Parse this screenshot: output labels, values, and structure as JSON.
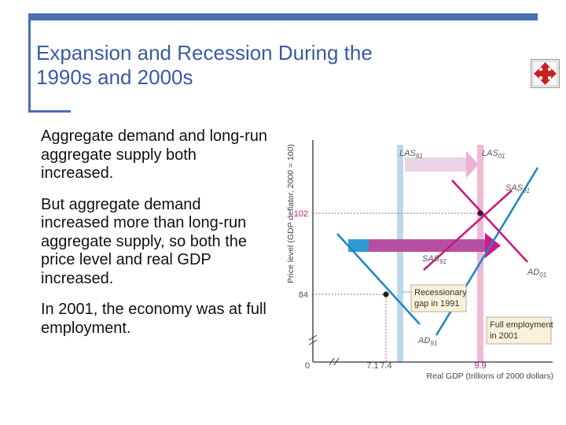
{
  "slide": {
    "title_line1": "Expansion and Recession During the",
    "title_line2": "1990s and 2000s",
    "bullets": [
      "Aggregate demand and long-run aggregate supply both increased.",
      "But aggregate demand increased more than long-run aggregate supply, so both the price level and real GDP increased.",
      "In 2001, the economy was at full employment."
    ],
    "nav_icon": "four-arrows-move-icon"
  },
  "diagram": {
    "y_axis_label": "Price level (GDP deflator, 2000 = 100)",
    "x_axis_label": "Real GDP (trillions of 2000 dollars)",
    "origin_label": "0",
    "y_ticks": [
      "102",
      "84"
    ],
    "x_ticks": [
      "7.1",
      "7.4",
      "9.9"
    ],
    "curves": {
      "las91": "LAS91",
      "las01": "LAS01",
      "sas01": "SAS01",
      "sas91": "SAS91",
      "ad01": "AD01",
      "ad91": "AD91"
    },
    "box_recessionary": [
      "Recessionary",
      "gap in 1991"
    ],
    "box_fullemp": [
      "Full employment",
      "in 2001"
    ],
    "colors": {
      "las91": "#bcd9ec",
      "las01": "#f0b9d6",
      "curve_blue": "#1f88c6",
      "curve_magenta": "#c8197d",
      "arrow_pink": "#e6a0cc",
      "dashed": "#c8197d",
      "box_fill": "#fbf1d8",
      "label": "#555555"
    }
  }
}
